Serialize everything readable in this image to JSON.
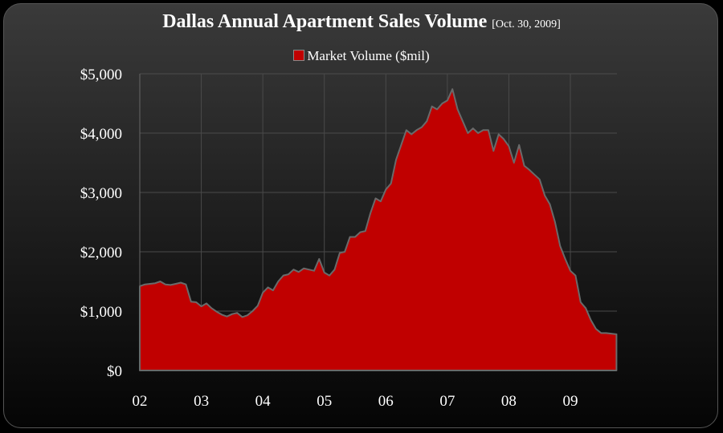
{
  "chart_data": {
    "type": "area",
    "title": "Dallas Annual Apartment Sales Volume",
    "subtitle": "[Oct. 30, 2009]",
    "legend": [
      "Market Volume ($mil)"
    ],
    "legend_position": "top",
    "xlabel": "",
    "ylabel": "",
    "ylim": [
      0,
      5000
    ],
    "y_ticks": [
      "$0",
      "$1,000",
      "$2,000",
      "$3,000",
      "$4,000",
      "$5,000"
    ],
    "x_ticks": [
      "02",
      "03",
      "04",
      "05",
      "06",
      "07",
      "08",
      "09"
    ],
    "grid": true,
    "series_color": "#c00000",
    "x_start": "Jan 2002",
    "x_step": "month",
    "series": [
      {
        "name": "Market Volume ($mil)",
        "values": [
          1420,
          1450,
          1460,
          1470,
          1500,
          1450,
          1440,
          1460,
          1480,
          1450,
          1160,
          1150,
          1080,
          1130,
          1050,
          990,
          940,
          910,
          950,
          970,
          900,
          930,
          1000,
          1090,
          1310,
          1400,
          1350,
          1500,
          1600,
          1620,
          1700,
          1660,
          1720,
          1700,
          1680,
          1880,
          1650,
          1600,
          1700,
          1980,
          2000,
          2250,
          2250,
          2330,
          2350,
          2650,
          2900,
          2850,
          3050,
          3150,
          3550,
          3800,
          4050,
          3980,
          4050,
          4100,
          4200,
          4450,
          4400,
          4500,
          4550,
          4740,
          4400,
          4200,
          4000,
          4080,
          4000,
          4050,
          4050,
          3700,
          3980,
          3900,
          3780,
          3500,
          3800,
          3450,
          3380,
          3300,
          3220,
          2950,
          2800,
          2500,
          2100,
          1880,
          1680,
          1600,
          1150,
          1050,
          850,
          700,
          630,
          630,
          620,
          610
        ]
      }
    ]
  }
}
